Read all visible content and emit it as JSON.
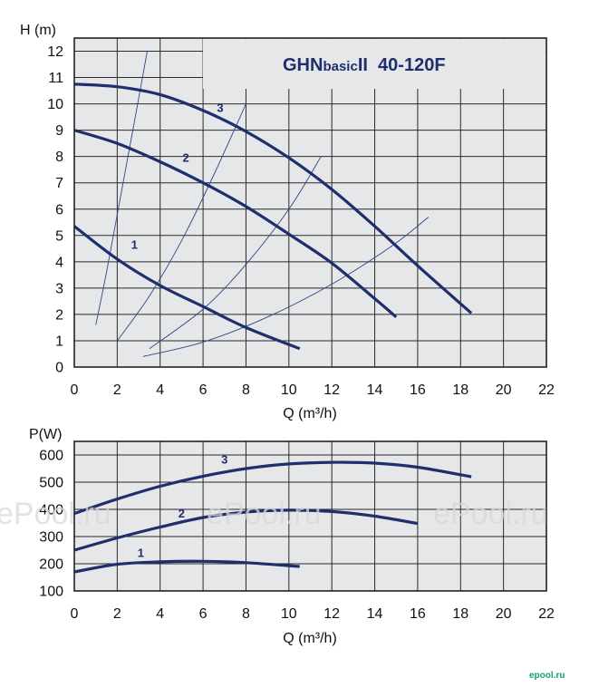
{
  "chart_data": [
    {
      "type": "line",
      "title": "GHNbasicII 40-120F",
      "title_parts": [
        "GHN",
        "basic",
        "II  40-120F"
      ],
      "xlabel": "Q (m³/h)",
      "ylabel": "H (m)",
      "xlim": [
        0,
        22
      ],
      "ylim": [
        0,
        12.5
      ],
      "x_ticks": [
        "0",
        "2",
        "4",
        "6",
        "8",
        "10",
        "12",
        "14",
        "16",
        "18",
        "20",
        "22"
      ],
      "y_ticks": [
        "0",
        "1",
        "2",
        "3",
        "4",
        "5",
        "6",
        "7",
        "8",
        "9",
        "10",
        "11",
        "12"
      ],
      "grid": true,
      "series": [
        {
          "name": "1",
          "color": "#1f2f6e",
          "x": [
            0,
            2,
            4,
            6,
            8,
            10.5
          ],
          "y": [
            5.35,
            4.1,
            3.1,
            2.3,
            1.5,
            0.7
          ]
        },
        {
          "name": "2",
          "color": "#1f2f6e",
          "x": [
            0,
            2,
            4,
            6,
            8,
            10,
            12,
            14,
            15
          ],
          "y": [
            9.0,
            8.5,
            7.8,
            7.0,
            6.1,
            5.05,
            3.95,
            2.6,
            1.9
          ]
        },
        {
          "name": "3",
          "color": "#1f2f6e",
          "x": [
            0,
            2,
            4,
            6,
            8,
            10,
            12,
            14,
            16,
            18.5
          ],
          "y": [
            10.75,
            10.65,
            10.35,
            9.75,
            8.95,
            7.95,
            6.75,
            5.35,
            3.85,
            2.05
          ]
        }
      ],
      "system_curves": [
        {
          "x": [
            1,
            1.5,
            2,
            2.5,
            3,
            3.4
          ],
          "y": [
            1.6,
            3.6,
            5.8,
            8.0,
            10.2,
            12.0
          ]
        },
        {
          "x": [
            2,
            3.5,
            5,
            6.5,
            8
          ],
          "y": [
            1.0,
            2.7,
            4.8,
            7.3,
            10.0
          ]
        },
        {
          "x": [
            3.5,
            6,
            8,
            10,
            11.5
          ],
          "y": [
            0.7,
            2.2,
            3.9,
            6.0,
            8.0
          ]
        },
        {
          "x": [
            3.2,
            6,
            9,
            12,
            14.8,
            16.5
          ],
          "y": [
            0.4,
            0.95,
            1.9,
            3.15,
            4.6,
            5.7
          ]
        }
      ],
      "curve_labels": [
        {
          "text": "1",
          "x": 2.8,
          "y": 4.5
        },
        {
          "text": "2",
          "x": 5.2,
          "y": 7.8
        },
        {
          "text": "3",
          "x": 6.8,
          "y": 9.7
        }
      ]
    },
    {
      "type": "line",
      "xlabel": "Q (m³/h)",
      "ylabel": "P(W)",
      "xlim": [
        0,
        22
      ],
      "ylim": [
        100,
        650
      ],
      "x_ticks": [
        "0",
        "2",
        "4",
        "6",
        "8",
        "10",
        "12",
        "14",
        "16",
        "18",
        "20",
        "22"
      ],
      "y_ticks": [
        "100",
        "200",
        "300",
        "400",
        "500",
        "600"
      ],
      "grid": true,
      "series": [
        {
          "name": "1",
          "color": "#1f2f6e",
          "x": [
            0,
            2,
            4,
            6,
            8,
            10.5
          ],
          "y": [
            170,
            198,
            207,
            209,
            204,
            190
          ]
        },
        {
          "name": "2",
          "color": "#1f2f6e",
          "x": [
            0,
            2,
            4,
            6,
            8,
            10,
            12,
            14,
            16
          ],
          "y": [
            250,
            295,
            335,
            370,
            390,
            397,
            392,
            375,
            348
          ]
        },
        {
          "name": "3",
          "color": "#1f2f6e",
          "x": [
            0,
            2,
            4,
            6,
            8,
            10,
            12,
            14,
            16,
            18.5
          ],
          "y": [
            385,
            438,
            485,
            522,
            550,
            567,
            573,
            570,
            555,
            520
          ]
        }
      ],
      "curve_labels": [
        {
          "text": "1",
          "x": 3.1,
          "y": 225
        },
        {
          "text": "2",
          "x": 5.0,
          "y": 370
        },
        {
          "text": "3",
          "x": 7.0,
          "y": 568
        }
      ]
    }
  ],
  "watermark": "ePool.ru",
  "brand": "epool.ru"
}
